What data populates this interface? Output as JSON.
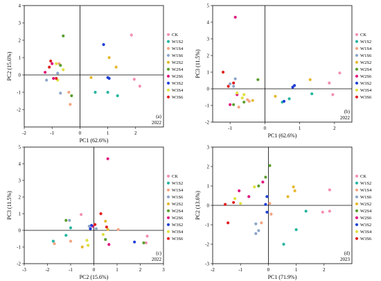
{
  "series_colors": {
    "CK": "#f48fb1",
    "W1S2": "#26b5a0",
    "W1S4": "#f4a582",
    "W1S6": "#8fa6c9",
    "W2S2": "#e5b82f",
    "W2S4": "#5a9e2f",
    "W2S6": "#e0177e",
    "W3S2": "#1f3fd6",
    "W3S4": "#e0e040",
    "W3S6": "#e02020"
  },
  "chart_data": [
    {
      "type": "scatter",
      "panel_label": "(a)",
      "year": "2022",
      "xlabel": "PC1 (62.6%)",
      "ylabel": "PC2 (15.6%)",
      "xlim": [
        -2,
        3
      ],
      "ylim": [
        -3,
        4
      ],
      "xticks": [
        "-2",
        "-1",
        "0",
        "1",
        "2"
      ],
      "yticks": [
        "-2",
        "-1",
        "0",
        "1",
        "2",
        "3",
        "4"
      ],
      "legend_position": "right",
      "series": [
        {
          "name": "CK",
          "points": [
            [
              1.85,
              2.3
            ],
            [
              1.95,
              -0.25
            ],
            [
              2.15,
              -0.65
            ]
          ]
        },
        {
          "name": "W1S2",
          "points": [
            [
              1.0,
              -1.0
            ],
            [
              0.55,
              -1.0
            ],
            [
              1.35,
              -1.2
            ]
          ]
        },
        {
          "name": "W1S4",
          "points": [
            [
              -0.4,
              -1.0
            ],
            [
              -0.35,
              -1.7
            ],
            [
              -0.75,
              0.65
            ]
          ]
        },
        {
          "name": "W1S6",
          "points": [
            [
              -1.2,
              -0.3
            ],
            [
              -0.7,
              -1.05
            ],
            [
              -0.8,
              0.1
            ]
          ]
        },
        {
          "name": "W2S2",
          "points": [
            [
              1.05,
              1.0
            ],
            [
              1.3,
              0.45
            ],
            [
              0.4,
              -0.15
            ]
          ]
        },
        {
          "name": "W2S4",
          "points": [
            [
              -0.6,
              2.25
            ],
            [
              -0.3,
              -1.2
            ],
            [
              -0.7,
              0.55
            ]
          ]
        },
        {
          "name": "W2S6",
          "points": [
            [
              -1.25,
              0.15
            ],
            [
              -1.0,
              0.65
            ],
            [
              -0.95,
              -0.2
            ]
          ]
        },
        {
          "name": "W3S2",
          "points": [
            [
              0.85,
              1.75
            ],
            [
              1.0,
              -0.15
            ],
            [
              1.05,
              -0.2
            ]
          ]
        },
        {
          "name": "W3S4",
          "points": [
            [
              -0.85,
              0.65
            ],
            [
              -0.8,
              -0.3
            ],
            [
              -0.6,
              0.3
            ]
          ]
        },
        {
          "name": "W3S6",
          "points": [
            [
              -1.1,
              0.45
            ],
            [
              -1.05,
              0.8
            ],
            [
              -0.85,
              -0.2
            ]
          ]
        }
      ]
    },
    {
      "type": "scatter",
      "panel_label": "(b)",
      "year": "2022",
      "xlabel": "PC1 (62.6%)",
      "ylabel": "PC3 (11.5%)",
      "xlim": [
        -1.5,
        2.5
      ],
      "ylim": [
        -2,
        5
      ],
      "xticks": [
        "-1",
        "0",
        "1",
        "2"
      ],
      "yticks": [
        "-2",
        "-1",
        "0",
        "1",
        "2",
        "3",
        "4",
        "5"
      ],
      "legend_position": "right",
      "series": [
        {
          "name": "CK",
          "points": [
            [
              2.15,
              0.95
            ],
            [
              1.95,
              -0.35
            ],
            [
              1.85,
              0.35
            ]
          ]
        },
        {
          "name": "W1S2",
          "points": [
            [
              0.5,
              -0.8
            ],
            [
              1.35,
              -0.3
            ],
            [
              0.7,
              -0.6
            ]
          ]
        },
        {
          "name": "W1S4",
          "points": [
            [
              -0.5,
              -0.65
            ],
            [
              -0.45,
              -0.75
            ],
            [
              -0.75,
              -1.1
            ]
          ]
        },
        {
          "name": "W1S6",
          "points": [
            [
              -1.0,
              0.3
            ],
            [
              -0.85,
              0.6
            ],
            [
              -0.9,
              0.15
            ]
          ]
        },
        {
          "name": "W2S2",
          "points": [
            [
              0.3,
              -0.45
            ],
            [
              1.3,
              0.55
            ],
            [
              -0.35,
              -0.7
            ]
          ]
        },
        {
          "name": "W2S4",
          "points": [
            [
              -0.6,
              -0.8
            ],
            [
              -0.2,
              0.55
            ],
            [
              -0.9,
              -0.95
            ]
          ]
        },
        {
          "name": "W2S6",
          "points": [
            [
              -0.85,
              4.3
            ],
            [
              -1.0,
              -0.95
            ],
            [
              -0.8,
              -0.35
            ]
          ]
        },
        {
          "name": "W3S2",
          "points": [
            [
              0.85,
              0.2
            ],
            [
              0.8,
              0.1
            ],
            [
              0.55,
              -0.75
            ]
          ]
        },
        {
          "name": "W3S4",
          "points": [
            [
              -0.8,
              -0.25
            ],
            [
              -0.65,
              -0.55
            ],
            [
              -0.6,
              -0.35
            ]
          ]
        },
        {
          "name": "W3S6",
          "points": [
            [
              -1.2,
              1.0
            ],
            [
              -1.05,
              0.15
            ],
            [
              -0.9,
              0.35
            ]
          ]
        }
      ]
    },
    {
      "type": "scatter",
      "panel_label": "(c)",
      "year": "2022",
      "xlabel": "PC2 (15.6%)",
      "ylabel": "PC3 (11.5%)",
      "xlim": [
        -3,
        3
      ],
      "ylim": [
        -2,
        5
      ],
      "xticks": [
        "-3",
        "-2",
        "-1",
        "0",
        "1",
        "2",
        "3"
      ],
      "yticks": [
        "-2",
        "-1",
        "0",
        "1",
        "2",
        "3",
        "4",
        "5"
      ],
      "legend_position": "right",
      "series": [
        {
          "name": "CK",
          "points": [
            [
              2.3,
              -0.35
            ],
            [
              -0.55,
              0.95
            ],
            [
              2.25,
              -0.75
            ]
          ]
        },
        {
          "name": "W1S2",
          "points": [
            [
              -1.75,
              -0.65
            ],
            [
              -1.0,
              0.15
            ],
            [
              -1.2,
              -0.3
            ]
          ]
        },
        {
          "name": "W1S4",
          "points": [
            [
              -1.7,
              -0.8
            ],
            [
              -1.0,
              -0.65
            ],
            [
              1.05,
              0.05
            ]
          ]
        },
        {
          "name": "W1S6",
          "points": [
            [
              -1.05,
              0.6
            ],
            [
              -0.2,
              0.25
            ],
            [
              0.1,
              0.1
            ]
          ]
        },
        {
          "name": "W2S2",
          "points": [
            [
              0.6,
              0.05
            ],
            [
              -0.5,
              -1.0
            ],
            [
              0.5,
              0.55
            ]
          ]
        },
        {
          "name": "W2S4",
          "points": [
            [
              -1.2,
              0.6
            ],
            [
              2.15,
              -0.75
            ],
            [
              0.5,
              -0.55
            ]
          ]
        },
        {
          "name": "W2S6",
          "points": [
            [
              0.6,
              4.3
            ],
            [
              0.65,
              -0.85
            ],
            [
              -0.05,
              0.25
            ]
          ]
        },
        {
          "name": "W3S2",
          "points": [
            [
              -0.15,
              0.1
            ],
            [
              -0.1,
              0.3
            ],
            [
              1.75,
              -0.7
            ]
          ]
        },
        {
          "name": "W3S4",
          "points": [
            [
              -0.25,
              -0.9
            ],
            [
              -0.3,
              -0.6
            ],
            [
              0.4,
              -0.25
            ]
          ]
        },
        {
          "name": "W3S6",
          "points": [
            [
              0.3,
              1.0
            ],
            [
              0.55,
              0.2
            ],
            [
              0.05,
              0.35
            ]
          ]
        }
      ]
    },
    {
      "type": "scatter",
      "panel_label": "(d)",
      "year": "2023",
      "xlabel": "PC1 (71.9%)",
      "ylabel": "PC2 (13.6%)",
      "xlim": [
        -2,
        3
      ],
      "ylim": [
        -3,
        3
      ],
      "xticks": [
        "-2",
        "-1",
        "0",
        "1",
        "2"
      ],
      "yticks": [
        "-3",
        "-2",
        "-1",
        "0",
        "1",
        "2",
        "3"
      ],
      "legend_position": "right",
      "series": [
        {
          "name": "CK",
          "points": [
            [
              2.2,
              0.8
            ],
            [
              1.95,
              -0.35
            ],
            [
              2.2,
              -0.3
            ]
          ]
        },
        {
          "name": "W1S2",
          "points": [
            [
              1.35,
              -0.3
            ],
            [
              0.55,
              -2.0
            ],
            [
              1.0,
              -1.25
            ]
          ]
        },
        {
          "name": "W1S4",
          "points": [
            [
              0.1,
              -0.45
            ],
            [
              -0.25,
              -0.9
            ],
            [
              0.05,
              0.1
            ]
          ]
        },
        {
          "name": "W1S6",
          "points": [
            [
              -0.45,
              -0.95
            ],
            [
              -0.35,
              -1.3
            ],
            [
              -0.45,
              -1.45
            ]
          ]
        },
        {
          "name": "W2S2",
          "points": [
            [
              0.9,
              0.95
            ],
            [
              0.95,
              0.75
            ],
            [
              0.7,
              0.45
            ]
          ]
        },
        {
          "name": "W2S4",
          "points": [
            [
              0.05,
              2.05
            ],
            [
              -0.1,
              1.45
            ],
            [
              -0.35,
              1.0
            ]
          ]
        },
        {
          "name": "W2S6",
          "points": [
            [
              -1.05,
              0.75
            ],
            [
              -0.2,
              1.2
            ],
            [
              -0.7,
              0.45
            ]
          ]
        },
        {
          "name": "W3S2",
          "points": [
            [
              -0.05,
              0.45
            ],
            [
              -0.1,
              0.05
            ],
            [
              -0.05,
              -0.35
            ]
          ]
        },
        {
          "name": "W3S4",
          "points": [
            [
              -1.0,
              0.1
            ],
            [
              -0.5,
              0.95
            ],
            [
              -1.2,
              0.35
            ]
          ]
        },
        {
          "name": "W3S6",
          "points": [
            [
              -1.55,
              0.05
            ],
            [
              -1.45,
              -0.9
            ],
            [
              -1.25,
              0.15
            ]
          ]
        }
      ]
    }
  ]
}
